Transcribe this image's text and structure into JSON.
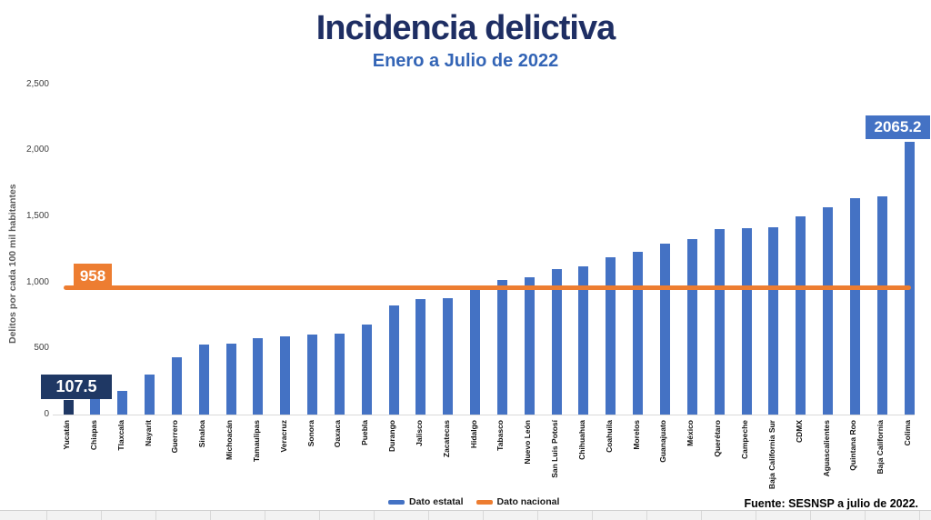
{
  "page": {
    "title": "Incidencia delictiva",
    "subtitle": "Enero a Julio de 2022",
    "source": "Fuente: SESNSP a julio de 2022."
  },
  "legend": {
    "state_label": "Dato estatal",
    "national_label": "Dato nacional"
  },
  "colors": {
    "bar": "#4472C4",
    "bar_min": "#1F3864",
    "national_line": "#ED7D31",
    "title": "#1e2e63",
    "subtitle": "#3465b6"
  },
  "chart_data": {
    "type": "bar",
    "title": "Incidencia delictiva",
    "subtitle": "Enero a Julio de 2022",
    "xlabel": "",
    "ylabel": "Delitos por cada 100 mil habitantes",
    "ylim": [
      0,
      2500
    ],
    "ytick_values": [
      0,
      500,
      1000,
      1500,
      2000,
      2500
    ],
    "ytick_labels": [
      "0",
      "500",
      "1,000",
      "1,500",
      "2,000",
      "2,500"
    ],
    "grid": false,
    "legend_position": "bottom-center",
    "series_name": "Dato estatal",
    "categories": [
      "Yucatán",
      "Chiapas",
      "Tlaxcala",
      "Nayarit",
      "Guerrero",
      "Sinaloa",
      "Michoacán",
      "Tamaulipas",
      "Veracruz",
      "Sonora",
      "Oaxaca",
      "Puebla",
      "Durango",
      "Jalisco",
      "Zacatecas",
      "Hidalgo",
      "Tabasco",
      "Nuevo León",
      "San Luis Potosí",
      "Chihuahua",
      "Coahuila",
      "Morelos",
      "Guanajuato",
      "México",
      "Querétaro",
      "Campeche",
      "Baja California Sur",
      "CDMX",
      "Aguascalientes",
      "Quintana Roo",
      "Baja California",
      "Colima"
    ],
    "values": [
      107.5,
      160,
      180,
      305,
      430,
      530,
      540,
      575,
      590,
      607,
      610,
      680,
      827,
      876,
      882,
      940,
      1016,
      1038,
      1102,
      1123,
      1188,
      1233,
      1291,
      1329,
      1405,
      1410,
      1417,
      1497,
      1566,
      1635,
      1653,
      2065.2
    ],
    "national_line": {
      "value": 958,
      "label": "958",
      "name": "Dato nacional"
    },
    "annotations": {
      "min": {
        "category": "Yucatán",
        "label": "107.5"
      },
      "max": {
        "category": "Colima",
        "label": "2065.2"
      }
    }
  }
}
